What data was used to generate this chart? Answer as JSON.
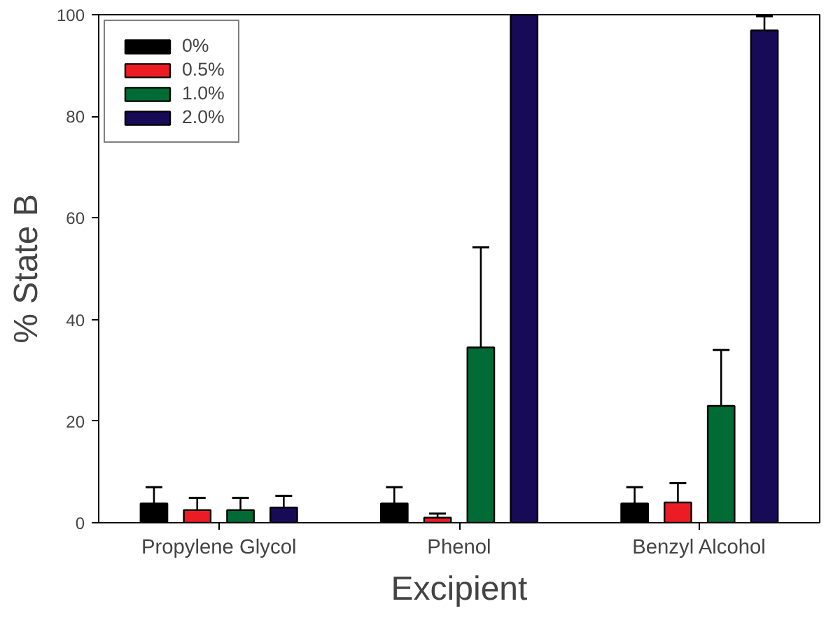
{
  "chart_data": {
    "type": "bar",
    "xlabel": "Excipient",
    "ylabel": "% State B",
    "categories": [
      "Propylene Glycol",
      "Phenol",
      "Benzyl Alcohol"
    ],
    "series": [
      {
        "name": "0%",
        "color": "#000000",
        "values": [
          3.8,
          3.8,
          3.8
        ],
        "errors": [
          [
            3.8,
            7.0
          ],
          [
            3.8,
            7.0
          ],
          [
            3.8,
            7.0
          ]
        ]
      },
      {
        "name": "0.5%",
        "color": "#ed1c24",
        "values": [
          2.5,
          1.0,
          4.0
        ],
        "errors": [
          [
            2.5,
            4.9
          ],
          [
            1.0,
            1.8
          ],
          [
            4.0,
            7.8
          ]
        ]
      },
      {
        "name": "1.0%",
        "color": "#006b35",
        "values": [
          2.5,
          34.5,
          23
        ],
        "errors": [
          [
            2.5,
            4.9
          ],
          [
            34.5,
            54.2
          ],
          [
            23,
            34
          ]
        ]
      },
      {
        "name": "2.0%",
        "color": "#170b57",
        "values": [
          3,
          100,
          96.9
        ],
        "errors": [
          [
            3,
            5.3
          ],
          [
            100,
            100
          ],
          [
            96.9,
            99.7
          ]
        ]
      }
    ],
    "ylim": [
      0,
      100
    ],
    "yticks": [
      0,
      20,
      40,
      60,
      80,
      100
    ],
    "grid": false,
    "legend": "top left"
  }
}
